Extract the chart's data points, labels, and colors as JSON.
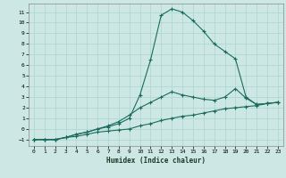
{
  "xlabel": "Humidex (Indice chaleur)",
  "background_color": "#cde8e4",
  "grid_color": "#b0d8d4",
  "line_color": "#1a6b5e",
  "xlim": [
    -0.5,
    23.5
  ],
  "ylim": [
    -1.6,
    11.8
  ],
  "xticks": [
    0,
    1,
    2,
    3,
    4,
    5,
    6,
    7,
    8,
    9,
    10,
    11,
    12,
    13,
    14,
    15,
    16,
    17,
    18,
    19,
    20,
    21,
    22,
    23
  ],
  "yticks": [
    -1,
    0,
    1,
    2,
    3,
    4,
    5,
    6,
    7,
    8,
    9,
    10,
    11
  ],
  "series": [
    {
      "x": [
        0,
        1,
        2,
        3,
        4,
        5,
        6,
        7,
        8,
        9,
        10,
        11,
        12,
        13,
        14,
        15,
        16,
        17,
        18,
        19,
        20,
        21,
        22,
        23
      ],
      "y": [
        -1,
        -1,
        -1,
        -0.8,
        -0.7,
        -0.5,
        -0.3,
        -0.2,
        -0.1,
        0,
        0.3,
        0.5,
        0.8,
        1.0,
        1.2,
        1.3,
        1.5,
        1.7,
        1.9,
        2.0,
        2.1,
        2.2,
        2.4,
        2.5
      ]
    },
    {
      "x": [
        0,
        1,
        2,
        3,
        4,
        5,
        6,
        7,
        8,
        9,
        10,
        11,
        12,
        13,
        14,
        15,
        16,
        17,
        18,
        19,
        20,
        21,
        22,
        23
      ],
      "y": [
        -1,
        -1,
        -1,
        -0.8,
        -0.5,
        -0.3,
        0,
        0.2,
        0.5,
        1.0,
        3.2,
        6.5,
        10.7,
        11.3,
        11.0,
        10.2,
        9.2,
        8.0,
        7.3,
        6.6,
        3.0,
        2.3,
        2.4,
        2.5
      ]
    },
    {
      "x": [
        0,
        1,
        2,
        3,
        4,
        5,
        6,
        7,
        8,
        9,
        10,
        11,
        12,
        13,
        14,
        15,
        16,
        17,
        18,
        19,
        20,
        21,
        22,
        23
      ],
      "y": [
        -1,
        -1,
        -1,
        -0.8,
        -0.5,
        -0.3,
        0,
        0.3,
        0.7,
        1.3,
        2.0,
        2.5,
        3.0,
        3.5,
        3.2,
        3.0,
        2.8,
        2.7,
        3.0,
        3.8,
        2.9,
        2.3,
        2.4,
        2.5
      ]
    }
  ]
}
